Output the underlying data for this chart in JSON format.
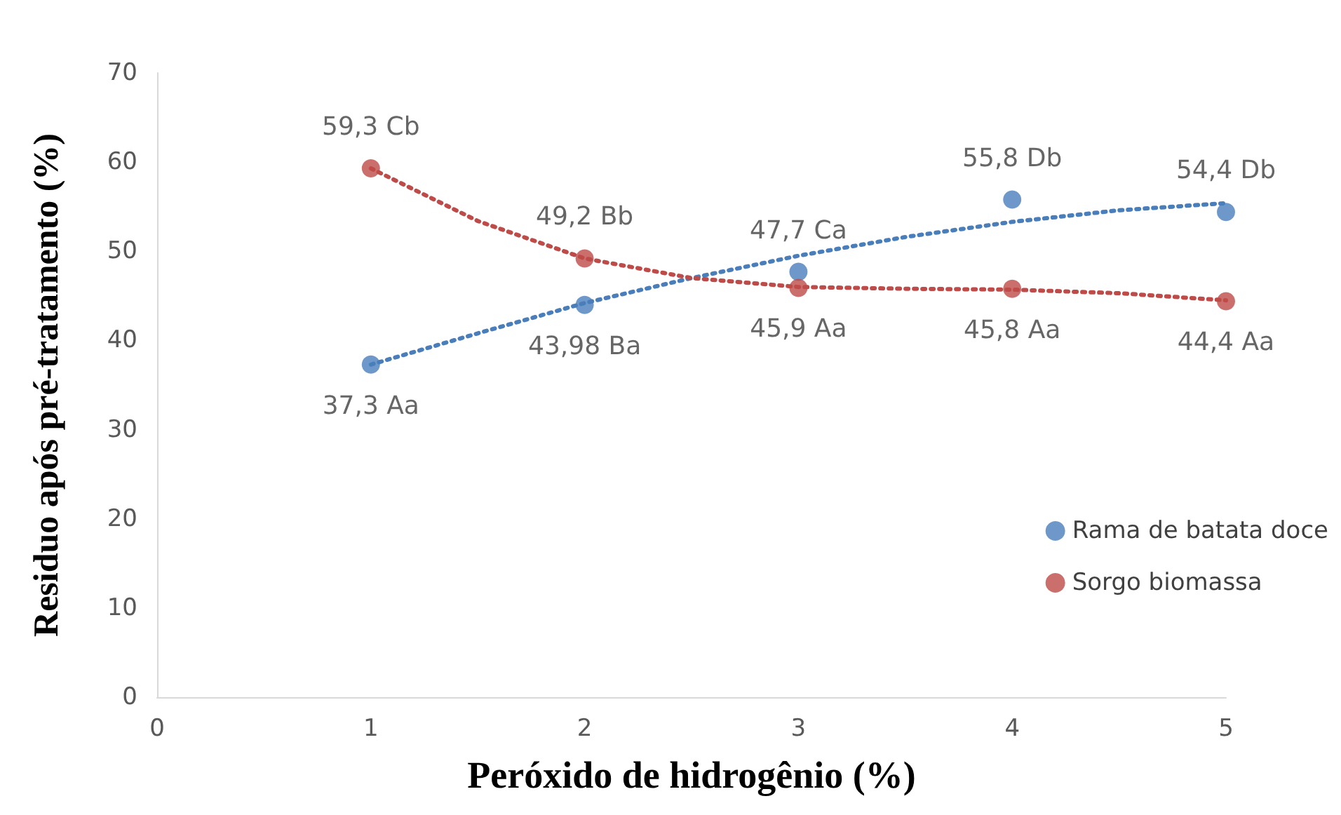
{
  "chart_data": {
    "type": "scatter",
    "xlabel": "Peróxido de hidrogênio (%)",
    "ylabel": "Residuo após pré-tratamento (%)",
    "x": [
      1,
      2,
      3,
      4,
      5
    ],
    "series": [
      {
        "name": "Rama de batata doce",
        "color": "#4a7ebb",
        "values": [
          37.3,
          43.98,
          47.7,
          55.8,
          54.4
        ],
        "value_labels": [
          "37,3 Aa",
          "43,98 Ba",
          "47,7 Ca",
          "55,8 Db",
          "54,4 Db"
        ]
      },
      {
        "name": "Sorgo biomassa",
        "color": "#be4b48",
        "values": [
          59.3,
          49.2,
          45.9,
          45.8,
          44.4
        ],
        "value_labels": [
          "59,3 Cb",
          "49,2 Bb",
          "45,9 Aa",
          "45,8 Aa",
          "44,4 Aa"
        ]
      },
      {
        "type": "line",
        "color": "#4a7ebb",
        "line_style": "dotted",
        "marker": "none",
        "x": [
          1,
          1.5,
          2,
          2.5,
          3,
          3.5,
          4,
          4.5,
          5
        ],
        "values": [
          37.3,
          40.8,
          44.2,
          47.0,
          49.5,
          51.6,
          53.3,
          54.6,
          55.4
        ]
      },
      {
        "type": "line",
        "color": "#be4b48",
        "line_style": "dotted",
        "marker": "none",
        "x": [
          1,
          1.5,
          2,
          2.5,
          3,
          3.5,
          4,
          4.5,
          5
        ],
        "values": [
          59.3,
          53.4,
          49.2,
          47.0,
          46.0,
          45.8,
          45.7,
          45.3,
          44.5
        ]
      }
    ],
    "xlim": [
      0,
      5
    ],
    "xticks": [
      0,
      1,
      2,
      3,
      4,
      5
    ],
    "ylim": [
      0,
      70
    ],
    "yticks": [
      0,
      10,
      20,
      30,
      40,
      50,
      60,
      70
    ],
    "legend": "right",
    "marker": "circle"
  }
}
